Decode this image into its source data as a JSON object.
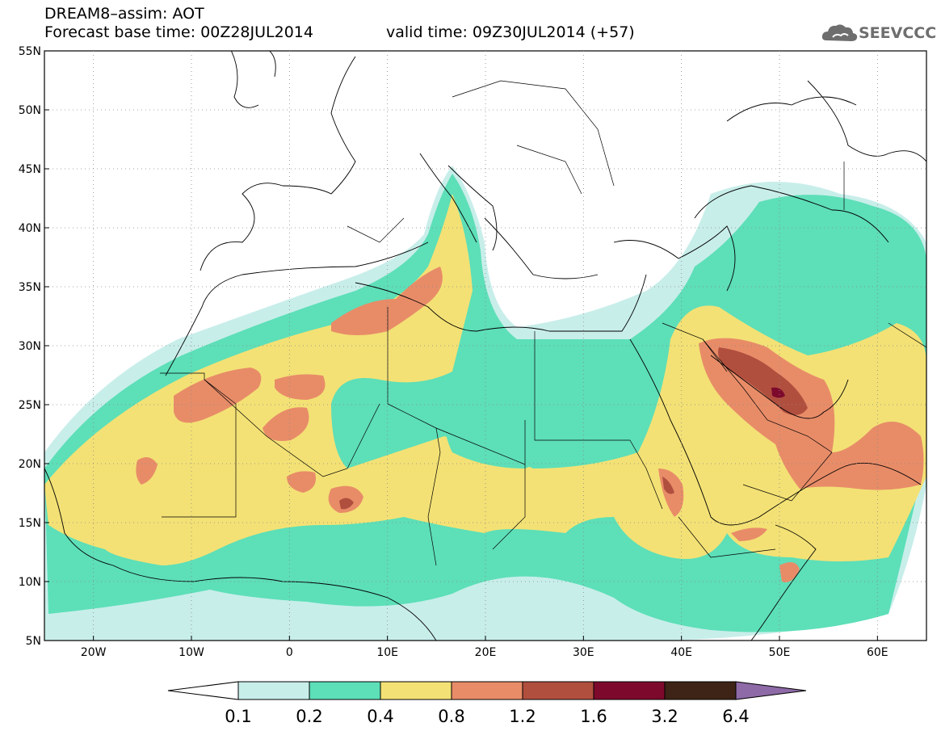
{
  "header": {
    "title": "DREAM8–assim: AOT",
    "base_time": "Forecast base time: 00Z28JUL2014",
    "valid_time": "valid time: 09Z30JUL2014 (+57)"
  },
  "logo": {
    "text": "SEEVCCC",
    "icon": "cloud-icon"
  },
  "map": {
    "lat_labels": [
      "55N",
      "50N",
      "45N",
      "40N",
      "35N",
      "30N",
      "25N",
      "20N",
      "15N",
      "10N",
      "5N"
    ],
    "lon_labels": [
      "20W",
      "10W",
      "0",
      "10E",
      "20E",
      "30E",
      "40E",
      "50E",
      "60E"
    ],
    "lat_range": [
      5,
      55
    ],
    "lon_range": [
      -25,
      65
    ],
    "grid": "dotted"
  },
  "colorbar": {
    "labels": [
      "0.1",
      "0.2",
      "0.4",
      "0.8",
      "1.2",
      "1.6",
      "3.2",
      "6.4"
    ],
    "colors": [
      "#ffffff",
      "#c8eeea",
      "#5ddfb8",
      "#f3e175",
      "#e88c68",
      "#b14f3f",
      "#7d0a2c",
      "#3d2416",
      "#8e6aa7"
    ]
  }
}
